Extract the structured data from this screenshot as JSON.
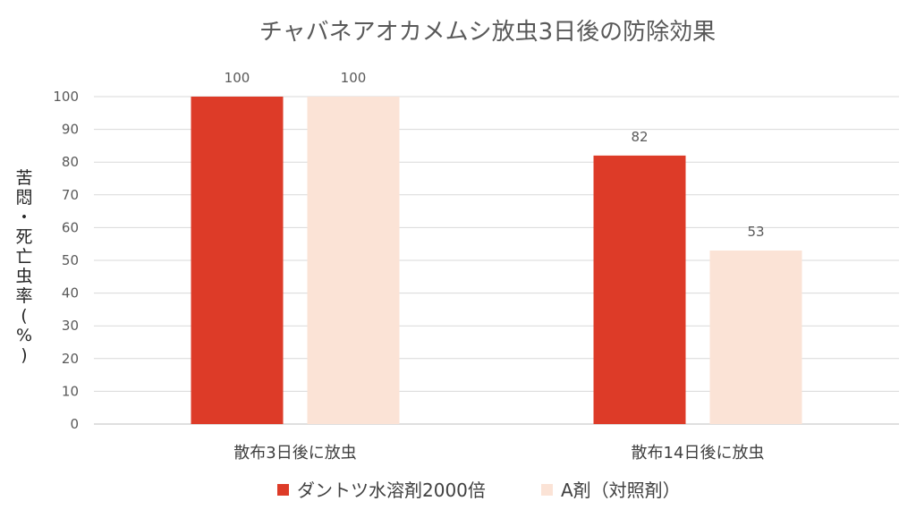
{
  "chart_data": {
    "type": "bar",
    "title": "チャバネアオカメムシ放虫3日後の防除効果",
    "ylabel": "苦悶・死亡虫率(%)",
    "ylabel_chars": [
      "苦",
      "悶",
      "・",
      "死",
      "亡",
      "虫",
      "率",
      "(",
      "%",
      ")"
    ],
    "xlabel": "",
    "categories": [
      "散布3日後に放虫",
      "散布14日後に放虫"
    ],
    "series": [
      {
        "name": "ダントツ水溶剤2000倍",
        "values": [
          100,
          82
        ],
        "color": "#dd3b28"
      },
      {
        "name": "A剤（対照剤）",
        "values": [
          100,
          53
        ],
        "color": "#fbe3d6"
      }
    ],
    "ylim": [
      0,
      100
    ],
    "yticks": [
      "0",
      "10",
      "20",
      "30",
      "40",
      "50",
      "60",
      "70",
      "80",
      "90",
      "100"
    ],
    "grid": true,
    "legend_position": "bottom",
    "data_labels": true
  }
}
